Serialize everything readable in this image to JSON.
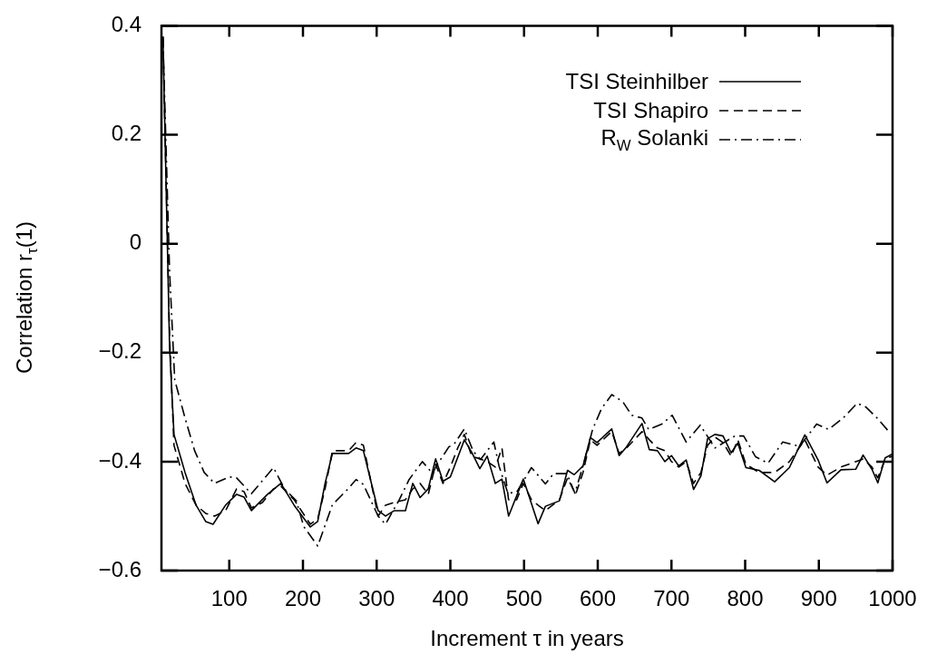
{
  "chart_data": {
    "type": "line",
    "xlabel": "Increment τ in years",
    "ylabel": "Correlation r$_{τ}$(1)",
    "xlim": [
      8,
      1000
    ],
    "xticks": [
      100,
      200,
      300,
      400,
      500,
      600,
      700,
      800,
      900,
      1000
    ],
    "ylim": [
      -0.6,
      0.4
    ],
    "yticks": [
      {
        "value": -0.6,
        "label": "−0.6"
      },
      {
        "value": -0.4,
        "label": "−0.4"
      },
      {
        "value": -0.2,
        "label": "−0.2"
      },
      0,
      0.2,
      0.4
    ],
    "grid": false,
    "legend": "top right",
    "marker": "none",
    "series": [
      {
        "name": "TSI Steinhilber",
        "color": "#000000",
        "line_style": "solid",
        "x": [
          10,
          19,
          25,
          40,
          55,
          68,
          78,
          95,
          110,
          120,
          130,
          152,
          170,
          188,
          210,
          220,
          230,
          240,
          262,
          272,
          282,
          302,
          312,
          324,
          339,
          349,
          359,
          370,
          380,
          390,
          400,
          419,
          429,
          440,
          450,
          461,
          470,
          479,
          499,
          519,
          529,
          548,
          559,
          568,
          580,
          590,
          599,
          619,
          629,
          639,
          660,
          670,
          681,
          691,
          700,
          710,
          720,
          730,
          740,
          749,
          759,
          770,
          781,
          790,
          801,
          819,
          840,
          860,
          881,
          899,
          911,
          930,
          950,
          960,
          972,
          980,
          990,
          1000
        ],
        "values": [
          0.38,
          -0.19,
          -0.35,
          -0.42,
          -0.48,
          -0.51,
          -0.515,
          -0.48,
          -0.46,
          -0.465,
          -0.49,
          -0.46,
          -0.44,
          -0.48,
          -0.52,
          -0.51,
          -0.44,
          -0.385,
          -0.385,
          -0.375,
          -0.38,
          -0.49,
          -0.5,
          -0.49,
          -0.49,
          -0.44,
          -0.466,
          -0.45,
          -0.395,
          -0.436,
          -0.428,
          -0.36,
          -0.383,
          -0.413,
          -0.39,
          -0.44,
          -0.432,
          -0.5,
          -0.432,
          -0.514,
          -0.482,
          -0.472,
          -0.416,
          -0.424,
          -0.408,
          -0.356,
          -0.365,
          -0.34,
          -0.389,
          -0.373,
          -0.33,
          -0.378,
          -0.38,
          -0.4,
          -0.389,
          -0.408,
          -0.397,
          -0.451,
          -0.426,
          -0.358,
          -0.35,
          -0.353,
          -0.384,
          -0.366,
          -0.411,
          -0.416,
          -0.437,
          -0.411,
          -0.351,
          -0.397,
          -0.439,
          -0.415,
          -0.414,
          -0.388,
          -0.414,
          -0.439,
          -0.393,
          -0.386
        ]
      },
      {
        "name": "TSI Shapiro",
        "color": "#000000",
        "line_style": "dashed",
        "x": [
          10,
          19,
          25,
          40,
          55,
          68,
          80,
          95,
          110,
          120,
          130,
          145,
          160,
          170,
          188,
          210,
          220,
          230,
          240,
          262,
          272,
          282,
          302,
          312,
          324,
          339,
          349,
          359,
          370,
          380,
          390,
          400,
          410,
          419,
          429,
          440,
          450,
          461,
          470,
          479,
          490,
          499,
          510,
          519,
          529,
          548,
          559,
          570,
          580,
          590,
          599,
          619,
          629,
          639,
          660,
          670,
          681,
          691,
          700,
          710,
          720,
          730,
          740,
          749,
          759,
          770,
          781,
          790,
          801,
          819,
          840,
          860,
          881,
          899,
          911,
          930,
          950,
          960,
          972,
          980,
          990,
          1000
        ],
        "values": [
          0.38,
          -0.17,
          -0.37,
          -0.44,
          -0.48,
          -0.495,
          -0.5,
          -0.49,
          -0.45,
          -0.455,
          -0.485,
          -0.475,
          -0.45,
          -0.445,
          -0.47,
          -0.515,
          -0.505,
          -0.45,
          -0.38,
          -0.38,
          -0.365,
          -0.37,
          -0.5,
          -0.48,
          -0.475,
          -0.47,
          -0.45,
          -0.44,
          -0.46,
          -0.405,
          -0.44,
          -0.41,
          -0.375,
          -0.35,
          -0.39,
          -0.395,
          -0.4,
          -0.41,
          -0.375,
          -0.47,
          -0.47,
          -0.44,
          -0.47,
          -0.48,
          -0.49,
          -0.47,
          -0.43,
          -0.46,
          -0.42,
          -0.36,
          -0.37,
          -0.345,
          -0.385,
          -0.375,
          -0.345,
          -0.36,
          -0.375,
          -0.38,
          -0.4,
          -0.41,
          -0.4,
          -0.44,
          -0.42,
          -0.37,
          -0.355,
          -0.365,
          -0.39,
          -0.36,
          -0.405,
          -0.42,
          -0.42,
          -0.4,
          -0.36,
          -0.41,
          -0.425,
          -0.41,
          -0.4,
          -0.395,
          -0.41,
          -0.43,
          -0.395,
          -0.39
        ]
      },
      {
        "name": "R$_{W}$ Solanki",
        "color": "#000000",
        "line_style": "dashdot",
        "x": [
          10,
          19,
          26,
          40,
          53,
          66,
          80,
          100,
          110,
          130,
          160,
          175,
          191,
          201,
          220,
          240,
          262,
          272,
          282,
          302,
          312,
          331,
          344,
          362,
          376,
          380,
          398,
          406,
          419,
          431,
          441,
          459,
          466,
          478,
          490,
          510,
          529,
          540,
          558,
          569,
          581,
          593,
          605,
          619,
          634,
          646,
          660,
          669,
          687,
          701,
          720,
          739,
          759,
          786,
          798,
          814,
          831,
          851,
          874,
          897,
          913,
          933,
          952,
          964,
          979,
          997
        ],
        "values": [
          0.38,
          -0.05,
          -0.25,
          -0.32,
          -0.38,
          -0.42,
          -0.44,
          -0.428,
          -0.43,
          -0.459,
          -0.411,
          -0.45,
          -0.472,
          -0.519,
          -0.555,
          -0.479,
          -0.449,
          -0.433,
          -0.442,
          -0.5,
          -0.515,
          -0.469,
          -0.433,
          -0.4,
          -0.422,
          -0.41,
          -0.373,
          -0.366,
          -0.34,
          -0.381,
          -0.396,
          -0.364,
          -0.408,
          -0.458,
          -0.456,
          -0.411,
          -0.441,
          -0.422,
          -0.422,
          -0.458,
          -0.403,
          -0.341,
          -0.303,
          -0.277,
          -0.29,
          -0.315,
          -0.32,
          -0.341,
          -0.331,
          -0.315,
          -0.364,
          -0.333,
          -0.375,
          -0.353,
          -0.353,
          -0.391,
          -0.403,
          -0.364,
          -0.372,
          -0.331,
          -0.341,
          -0.32,
          -0.293,
          -0.3,
          -0.32,
          -0.348
        ]
      }
    ]
  }
}
